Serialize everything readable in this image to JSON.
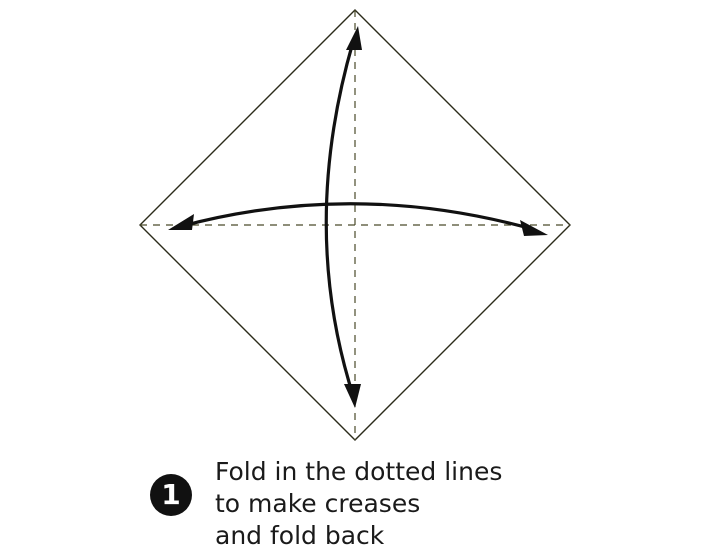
{
  "step": {
    "number": "1",
    "instruction_lines": [
      "Fold in the dotted lines",
      "to make creases",
      "and fold back"
    ]
  },
  "colors": {
    "paper_outline": "#2b2b1a",
    "fold_line": "#4a4a2a",
    "arrow": "#111111",
    "text": "#1a1a1a"
  }
}
